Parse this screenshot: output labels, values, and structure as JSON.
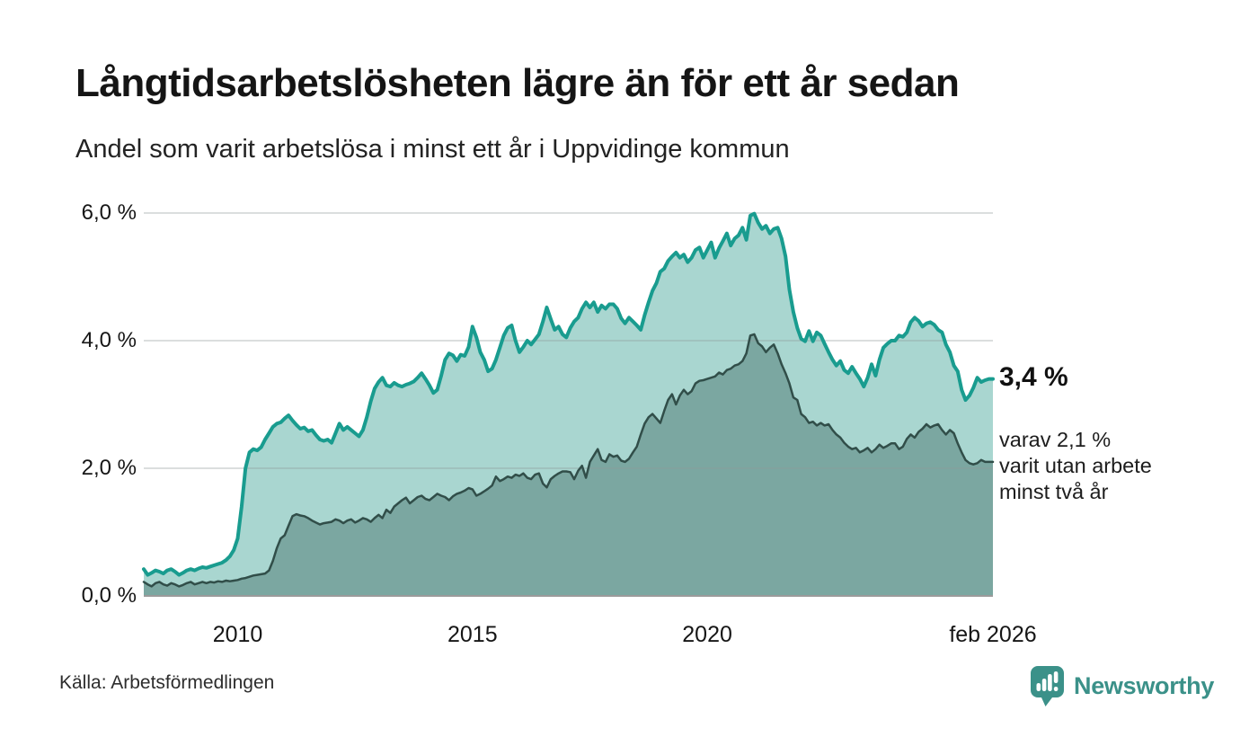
{
  "header": {
    "title": "Långtidsarbetslösheten lägre än för ett år sedan",
    "subtitle": "Andel som varit arbetslösa i minst ett år i Uppvidinge kommun"
  },
  "chart_data": {
    "type": "area",
    "title": "Långtidsarbetslösheten lägre än för ett år sedan",
    "x_start": "2008-01",
    "x_end": "2026-02",
    "x_step": "month",
    "ylim": [
      0,
      6.2
    ],
    "grid": "horizontal",
    "y_ticks": [
      {
        "value": 0,
        "label": "0,0 %"
      },
      {
        "value": 2,
        "label": "2,0 %"
      },
      {
        "value": 4,
        "label": "4,0 %"
      },
      {
        "value": 6,
        "label": "6,0 %"
      }
    ],
    "x_ticks": [
      {
        "index": 24,
        "label": "2010"
      },
      {
        "index": 84,
        "label": "2015"
      },
      {
        "index": 144,
        "label": "2020"
      },
      {
        "index": 217,
        "label": "feb 2026"
      }
    ],
    "series": [
      {
        "name": "arbetslösa minst ett år",
        "line_color": "#199c8f",
        "fill_color": "#a9d6d0",
        "line_width": 4,
        "values": [
          0.42,
          0.33,
          0.36,
          0.4,
          0.38,
          0.35,
          0.4,
          0.42,
          0.38,
          0.33,
          0.36,
          0.4,
          0.42,
          0.4,
          0.43,
          0.45,
          0.44,
          0.46,
          0.48,
          0.5,
          0.52,
          0.56,
          0.62,
          0.72,
          0.9,
          1.4,
          2.0,
          2.25,
          2.3,
          2.28,
          2.33,
          2.45,
          2.55,
          2.65,
          2.7,
          2.72,
          2.78,
          2.83,
          2.75,
          2.68,
          2.62,
          2.64,
          2.58,
          2.6,
          2.52,
          2.45,
          2.43,
          2.45,
          2.4,
          2.55,
          2.7,
          2.6,
          2.65,
          2.6,
          2.55,
          2.5,
          2.6,
          2.8,
          3.05,
          3.25,
          3.35,
          3.42,
          3.3,
          3.28,
          3.34,
          3.3,
          3.28,
          3.31,
          3.33,
          3.36,
          3.42,
          3.49,
          3.4,
          3.3,
          3.18,
          3.23,
          3.45,
          3.7,
          3.8,
          3.77,
          3.68,
          3.78,
          3.76,
          3.9,
          4.22,
          4.05,
          3.82,
          3.7,
          3.52,
          3.56,
          3.7,
          3.89,
          4.08,
          4.2,
          4.24,
          4.0,
          3.82,
          3.9,
          4.0,
          3.94,
          4.02,
          4.1,
          4.3,
          4.52,
          4.34,
          4.17,
          4.22,
          4.1,
          4.05,
          4.2,
          4.3,
          4.36,
          4.5,
          4.6,
          4.52,
          4.6,
          4.45,
          4.55,
          4.5,
          4.57,
          4.57,
          4.5,
          4.35,
          4.27,
          4.36,
          4.3,
          4.24,
          4.17,
          4.4,
          4.6,
          4.78,
          4.9,
          5.08,
          5.13,
          5.25,
          5.32,
          5.38,
          5.3,
          5.35,
          5.23,
          5.3,
          5.42,
          5.46,
          5.3,
          5.42,
          5.54,
          5.3,
          5.45,
          5.56,
          5.68,
          5.49,
          5.6,
          5.65,
          5.77,
          5.58,
          5.96,
          5.99,
          5.85,
          5.75,
          5.8,
          5.68,
          5.75,
          5.77,
          5.6,
          5.32,
          4.8,
          4.45,
          4.2,
          4.03,
          3.99,
          4.15,
          3.99,
          4.13,
          4.08,
          3.95,
          3.82,
          3.7,
          3.61,
          3.68,
          3.54,
          3.49,
          3.59,
          3.49,
          3.4,
          3.28,
          3.42,
          3.63,
          3.45,
          3.7,
          3.89,
          3.95,
          4.0,
          4.0,
          4.08,
          4.06,
          4.13,
          4.29,
          4.36,
          4.31,
          4.22,
          4.27,
          4.29,
          4.25,
          4.17,
          4.13,
          3.94,
          3.82,
          3.61,
          3.52,
          3.23,
          3.07,
          3.14,
          3.26,
          3.42,
          3.35,
          3.38,
          3.4,
          3.4
        ]
      },
      {
        "name": "varit utan arbete minst två år",
        "line_color": "#314e49",
        "fill_color": "#7ba7a1",
        "line_width": 2.5,
        "values": [
          0.22,
          0.18,
          0.15,
          0.2,
          0.22,
          0.18,
          0.16,
          0.2,
          0.18,
          0.15,
          0.17,
          0.2,
          0.22,
          0.18,
          0.2,
          0.22,
          0.2,
          0.22,
          0.21,
          0.23,
          0.22,
          0.24,
          0.23,
          0.24,
          0.25,
          0.27,
          0.28,
          0.3,
          0.32,
          0.33,
          0.34,
          0.35,
          0.4,
          0.55,
          0.75,
          0.9,
          0.95,
          1.1,
          1.25,
          1.28,
          1.26,
          1.25,
          1.22,
          1.18,
          1.15,
          1.12,
          1.14,
          1.15,
          1.16,
          1.2,
          1.18,
          1.14,
          1.18,
          1.2,
          1.15,
          1.18,
          1.22,
          1.2,
          1.16,
          1.22,
          1.27,
          1.22,
          1.35,
          1.3,
          1.4,
          1.45,
          1.5,
          1.54,
          1.45,
          1.5,
          1.55,
          1.57,
          1.52,
          1.5,
          1.55,
          1.6,
          1.57,
          1.55,
          1.5,
          1.56,
          1.6,
          1.62,
          1.65,
          1.69,
          1.67,
          1.57,
          1.6,
          1.64,
          1.68,
          1.73,
          1.87,
          1.8,
          1.83,
          1.87,
          1.85,
          1.9,
          1.88,
          1.92,
          1.85,
          1.83,
          1.9,
          1.92,
          1.76,
          1.7,
          1.83,
          1.88,
          1.92,
          1.95,
          1.95,
          1.94,
          1.83,
          1.96,
          2.04,
          1.85,
          2.1,
          2.2,
          2.3,
          2.13,
          2.1,
          2.22,
          2.18,
          2.2,
          2.12,
          2.1,
          2.15,
          2.25,
          2.34,
          2.53,
          2.7,
          2.8,
          2.85,
          2.78,
          2.71,
          2.9,
          3.07,
          3.16,
          3.0,
          3.14,
          3.23,
          3.16,
          3.21,
          3.33,
          3.37,
          3.38,
          3.4,
          3.42,
          3.44,
          3.5,
          3.47,
          3.54,
          3.56,
          3.61,
          3.63,
          3.68,
          3.8,
          4.08,
          4.1,
          3.96,
          3.91,
          3.82,
          3.89,
          3.94,
          3.8,
          3.63,
          3.49,
          3.33,
          3.11,
          3.07,
          2.85,
          2.8,
          2.71,
          2.73,
          2.67,
          2.71,
          2.67,
          2.69,
          2.6,
          2.53,
          2.48,
          2.4,
          2.34,
          2.3,
          2.32,
          2.25,
          2.28,
          2.32,
          2.25,
          2.3,
          2.37,
          2.32,
          2.35,
          2.39,
          2.39,
          2.3,
          2.34,
          2.46,
          2.53,
          2.48,
          2.57,
          2.62,
          2.69,
          2.64,
          2.67,
          2.69,
          2.6,
          2.53,
          2.6,
          2.55,
          2.39,
          2.25,
          2.13,
          2.08,
          2.06,
          2.08,
          2.13,
          2.1,
          2.1,
          2.1
        ]
      }
    ]
  },
  "annotation": {
    "headline": "3,4 %",
    "lines": [
      "varav 2,1 %",
      "varit utan arbete",
      "minst två år"
    ]
  },
  "footer": {
    "source": "Källa: Arbetsförmedlingen",
    "brand": "Newsworthy",
    "brand_color": "#3b9189"
  }
}
